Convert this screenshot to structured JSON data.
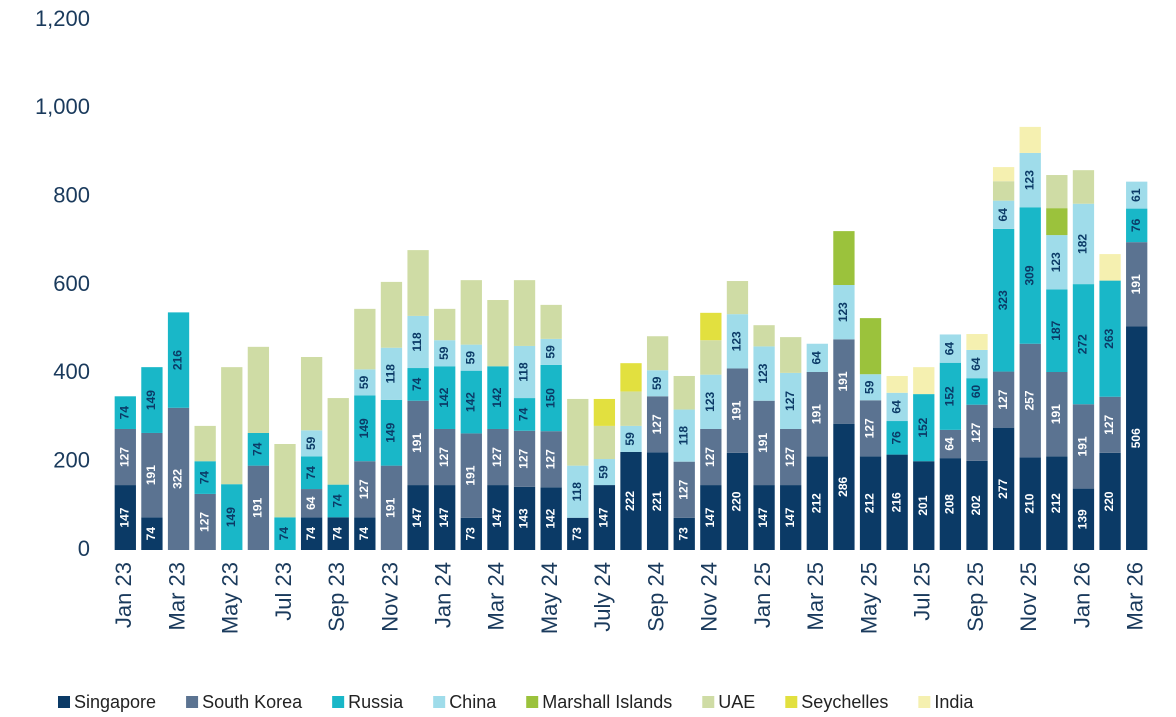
{
  "chart_data": {
    "type": "stacked_bar",
    "categories": [
      "Jan 23",
      null,
      "Mar 23",
      null,
      "May 23",
      null,
      "Jul 23",
      null,
      "Sep 23",
      null,
      "Nov 23",
      null,
      "Jan 24",
      null,
      "Mar 24",
      null,
      "May 24",
      null,
      "July 24",
      null,
      "Sep 24",
      null,
      "Nov 24",
      null,
      "Jan 25",
      null,
      "Mar 25",
      null,
      "May 25",
      null,
      "Jul 25",
      null,
      "Sep 25",
      null,
      "Nov 25",
      null,
      "Jan 26",
      null,
      "Mar 26"
    ],
    "series": [
      {
        "name": "Singapore",
        "color": "#0b3a66",
        "labels": true,
        "label_color": "#ffffff",
        "values": [
          147,
          74,
          null,
          null,
          null,
          null,
          null,
          74,
          74,
          74,
          null,
          147,
          147,
          73,
          147,
          143,
          142,
          73,
          147,
          222,
          221,
          73,
          147,
          220,
          147,
          147,
          212,
          286,
          212,
          216,
          201,
          208,
          202,
          277,
          210,
          212,
          139,
          220,
          506
        ]
      },
      {
        "name": "South Korea",
        "color": "#5b7391",
        "labels": true,
        "label_color": "#ffffff",
        "values": [
          127,
          191,
          322,
          127,
          null,
          191,
          null,
          64,
          null,
          127,
          191,
          191,
          127,
          191,
          127,
          127,
          127,
          null,
          null,
          null,
          127,
          127,
          127,
          191,
          191,
          127,
          191,
          191,
          127,
          null,
          null,
          64,
          127,
          127,
          257,
          191,
          191,
          127,
          191
        ]
      },
      {
        "name": "Russia",
        "color": "#19b7c8",
        "labels": true,
        "label_color": "#0b3a66",
        "values": [
          74,
          149,
          216,
          74,
          149,
          74,
          74,
          74,
          74,
          149,
          149,
          74,
          142,
          142,
          142,
          74,
          150,
          null,
          null,
          null,
          null,
          null,
          null,
          null,
          null,
          null,
          null,
          null,
          null,
          76,
          152,
          152,
          60,
          323,
          309,
          187,
          272,
          263,
          76
        ]
      },
      {
        "name": "China",
        "color": "#9fdcea",
        "labels": true,
        "label_color": "#0b3a66",
        "values": [
          null,
          null,
          null,
          null,
          null,
          null,
          null,
          59,
          null,
          59,
          118,
          118,
          59,
          59,
          null,
          118,
          59,
          118,
          59,
          59,
          59,
          118,
          123,
          123,
          123,
          127,
          64,
          123,
          59,
          64,
          null,
          64,
          64,
          64,
          123,
          123,
          182,
          null,
          61
        ]
      },
      {
        "name": "Marshall Islands",
        "color": "#9bc23c",
        "labels": false,
        "values": [
          null,
          null,
          null,
          null,
          null,
          null,
          null,
          null,
          null,
          null,
          null,
          null,
          null,
          null,
          null,
          null,
          null,
          null,
          null,
          null,
          null,
          null,
          null,
          null,
          null,
          null,
          null,
          122,
          127,
          null,
          null,
          null,
          null,
          null,
          null,
          61,
          null,
          null,
          null
        ]
      },
      {
        "name": "UAE",
        "color": "#cfdca5",
        "labels": false,
        "values": [
          null,
          null,
          null,
          80,
          265,
          195,
          166,
          166,
          196,
          137,
          149,
          149,
          71,
          146,
          150,
          149,
          77,
          151,
          75,
          78,
          77,
          76,
          78,
          75,
          48,
          81,
          null,
          null,
          null,
          null,
          null,
          null,
          null,
          44,
          null,
          75,
          76,
          null,
          null
        ]
      },
      {
        "name": "Seychelles",
        "color": "#e2e03f",
        "labels": false,
        "values": [
          null,
          null,
          null,
          null,
          null,
          null,
          null,
          null,
          null,
          null,
          null,
          null,
          null,
          null,
          null,
          null,
          null,
          null,
          61,
          64,
          null,
          null,
          62,
          null,
          null,
          null,
          null,
          null,
          null,
          null,
          null,
          null,
          null,
          null,
          null,
          null,
          null,
          null,
          null
        ]
      },
      {
        "name": "India",
        "color": "#f5f0b0",
        "labels": false,
        "values": [
          null,
          null,
          null,
          null,
          null,
          null,
          null,
          null,
          null,
          null,
          null,
          null,
          null,
          null,
          null,
          null,
          null,
          null,
          null,
          null,
          null,
          null,
          null,
          null,
          null,
          null,
          null,
          null,
          null,
          38,
          61,
          null,
          36,
          32,
          59,
          null,
          null,
          60,
          null
        ]
      }
    ],
    "ylim": [
      0,
      1200
    ],
    "yticks": [
      0,
      200,
      400,
      600,
      800,
      {
        "value": 1000,
        "label": "1,000"
      },
      {
        "value": 1200,
        "label": "1,200"
      }
    ],
    "grid": false,
    "legend": "bottom"
  }
}
